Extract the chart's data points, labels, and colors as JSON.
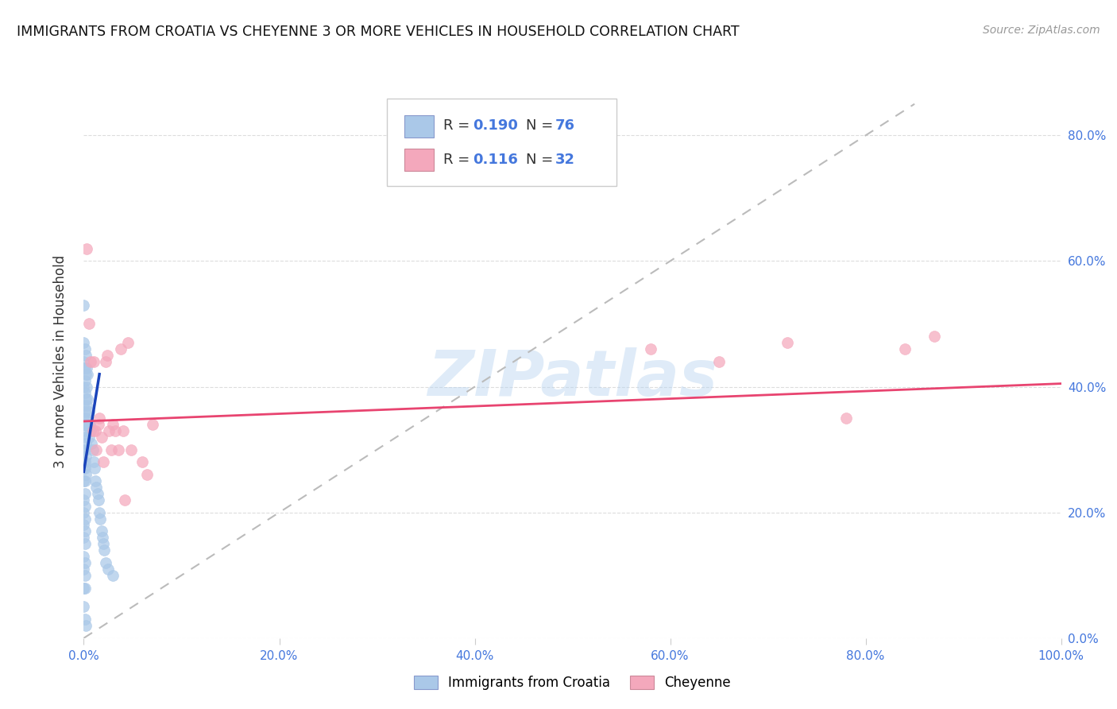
{
  "title": "IMMIGRANTS FROM CROATIA VS CHEYENNE 3 OR MORE VEHICLES IN HOUSEHOLD CORRELATION CHART",
  "source": "Source: ZipAtlas.com",
  "ylabel": "3 or more Vehicles in Household",
  "watermark": "ZIPatlas",
  "r_croatia": 0.19,
  "n_croatia": 76,
  "r_cheyenne": 0.116,
  "n_cheyenne": 32,
  "legend_labels": [
    "Immigrants from Croatia",
    "Cheyenne"
  ],
  "color_croatia": "#aac8e8",
  "color_cheyenne": "#f4a8bc",
  "line_color_croatia": "#1a44bb",
  "line_color_cheyenne": "#e84470",
  "diagonal_color": "#bbbbbb",
  "background": "#ffffff",
  "tick_color": "#4477dd",
  "xlim": [
    0.0,
    1.0
  ],
  "ylim": [
    0.0,
    0.88
  ],
  "xticks": [
    0.0,
    0.2,
    0.4,
    0.6,
    0.8,
    1.0
  ],
  "yticks": [
    0.0,
    0.2,
    0.4,
    0.6,
    0.8
  ],
  "xtick_labels": [
    "0.0%",
    "20.0%",
    "40.0%",
    "60.0%",
    "80.0%",
    "100.0%"
  ],
  "ytick_labels": [
    "0.0%",
    "20.0%",
    "40.0%",
    "60.0%",
    "80.0%"
  ],
  "croatia_x": [
    0.0,
    0.0,
    0.0,
    0.0,
    0.0,
    0.0,
    0.0,
    0.0,
    0.0,
    0.0,
    0.0,
    0.0,
    0.0,
    0.0,
    0.0,
    0.0,
    0.0,
    0.0,
    0.0,
    0.0,
    0.001,
    0.001,
    0.001,
    0.001,
    0.001,
    0.001,
    0.001,
    0.001,
    0.001,
    0.001,
    0.001,
    0.001,
    0.001,
    0.001,
    0.001,
    0.001,
    0.001,
    0.001,
    0.001,
    0.001,
    0.002,
    0.002,
    0.002,
    0.002,
    0.002,
    0.002,
    0.002,
    0.002,
    0.002,
    0.003,
    0.003,
    0.003,
    0.004,
    0.004,
    0.004,
    0.005,
    0.005,
    0.006,
    0.007,
    0.008,
    0.009,
    0.01,
    0.011,
    0.012,
    0.013,
    0.014,
    0.015,
    0.016,
    0.017,
    0.018,
    0.019,
    0.02,
    0.021,
    0.022,
    0.025,
    0.03
  ],
  "croatia_y": [
    0.53,
    0.47,
    0.44,
    0.43,
    0.4,
    0.37,
    0.35,
    0.34,
    0.3,
    0.28,
    0.27,
    0.25,
    0.22,
    0.2,
    0.18,
    0.16,
    0.13,
    0.11,
    0.08,
    0.05,
    0.46,
    0.43,
    0.41,
    0.39,
    0.36,
    0.34,
    0.32,
    0.3,
    0.28,
    0.27,
    0.25,
    0.23,
    0.21,
    0.19,
    0.17,
    0.15,
    0.12,
    0.1,
    0.08,
    0.03,
    0.45,
    0.42,
    0.38,
    0.35,
    0.33,
    0.31,
    0.29,
    0.26,
    0.02,
    0.43,
    0.4,
    0.37,
    0.42,
    0.38,
    0.34,
    0.36,
    0.32,
    0.34,
    0.33,
    0.31,
    0.3,
    0.28,
    0.27,
    0.25,
    0.24,
    0.23,
    0.22,
    0.2,
    0.19,
    0.17,
    0.16,
    0.15,
    0.14,
    0.12,
    0.11,
    0.1
  ],
  "cheyenne_x": [
    0.003,
    0.005,
    0.007,
    0.009,
    0.01,
    0.012,
    0.013,
    0.015,
    0.016,
    0.018,
    0.02,
    0.022,
    0.024,
    0.026,
    0.028,
    0.03,
    0.032,
    0.035,
    0.038,
    0.04,
    0.042,
    0.045,
    0.048,
    0.06,
    0.065,
    0.07,
    0.58,
    0.65,
    0.72,
    0.78,
    0.84,
    0.87
  ],
  "cheyenne_y": [
    0.62,
    0.5,
    0.44,
    0.33,
    0.44,
    0.33,
    0.3,
    0.34,
    0.35,
    0.32,
    0.28,
    0.44,
    0.45,
    0.33,
    0.3,
    0.34,
    0.33,
    0.3,
    0.46,
    0.33,
    0.22,
    0.47,
    0.3,
    0.28,
    0.26,
    0.34,
    0.46,
    0.44,
    0.47,
    0.35,
    0.46,
    0.48
  ],
  "croatia_line_x0": 0.0,
  "croatia_line_y0": 0.265,
  "croatia_line_x1": 0.016,
  "croatia_line_y1": 0.42,
  "cheyenne_line_x0": 0.0,
  "cheyenne_line_y0": 0.345,
  "cheyenne_line_x1": 1.0,
  "cheyenne_line_y1": 0.405
}
